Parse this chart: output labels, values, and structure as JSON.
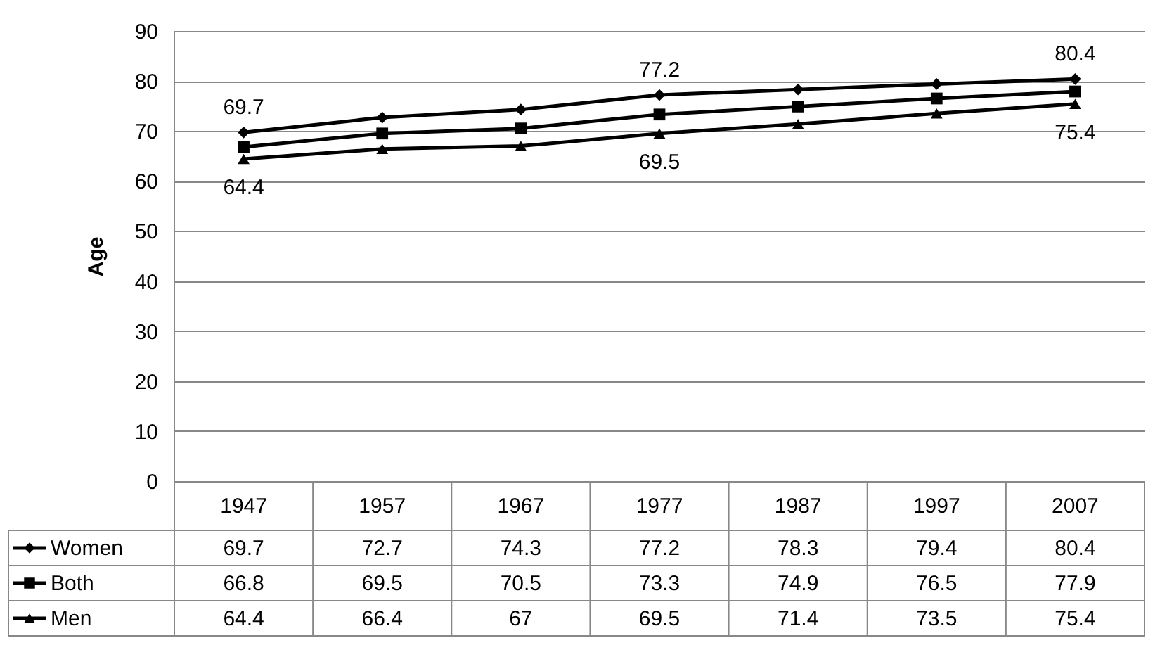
{
  "chart_data": {
    "type": "line",
    "ylabel": "Age",
    "categories": [
      "1947",
      "1957",
      "1967",
      "1977",
      "1987",
      "1997",
      "2007"
    ],
    "series": [
      {
        "name": "Women",
        "color": "#000000",
        "marker": "diamond",
        "values": [
          69.7,
          72.7,
          74.3,
          77.2,
          78.3,
          79.4,
          80.4
        ]
      },
      {
        "name": "Both",
        "color": "#000000",
        "marker": "square",
        "values": [
          66.8,
          69.5,
          70.5,
          73.3,
          74.9,
          76.5,
          77.9
        ]
      },
      {
        "name": "Men",
        "color": "#000000",
        "marker": "triangle",
        "values": [
          64.4,
          66.4,
          67,
          69.5,
          71.4,
          73.5,
          75.4
        ]
      }
    ],
    "annotations": [
      {
        "text": "69.7",
        "x": "1947",
        "y": 69.7
      },
      {
        "text": "77.2",
        "x": "1977",
        "y": 77.2
      },
      {
        "text": "80.4",
        "x": "2007",
        "y": 80.4
      },
      {
        "text": "64.4",
        "x": "1947",
        "y": 64.4
      },
      {
        "text": "69.5",
        "x": "1977",
        "y": 69.5
      },
      {
        "text": "75.4",
        "x": "2007",
        "y": 75.4
      }
    ],
    "legend": "bottom left",
    "ylim": [
      0,
      90
    ],
    "yticks": [
      0,
      10,
      20,
      30,
      40,
      50,
      60,
      70,
      80,
      90
    ],
    "grid": "y",
    "data_labels": true,
    "line_style": "solid"
  }
}
